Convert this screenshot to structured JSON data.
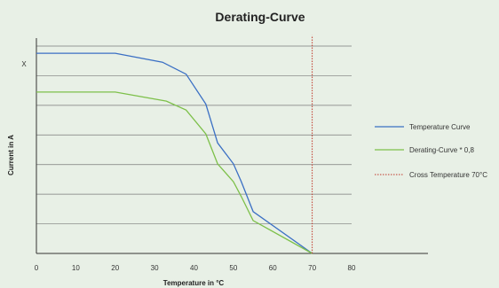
{
  "chart_data": {
    "type": "line",
    "title": "Derating-Curve",
    "xlabel": "Temperature in °C",
    "ylabel": "Current in A",
    "xlim": [
      0,
      80
    ],
    "x_ticks": [
      "0",
      "10",
      "20",
      "30",
      "40",
      "50",
      "60",
      "70",
      "80"
    ],
    "ylim": [
      0,
      7
    ],
    "y_tick_labels": [
      {
        "y": 6.35,
        "label": "X"
      }
    ],
    "grid": "horizontal",
    "legend_position": "right",
    "series": [
      {
        "name": "Temperature Curve",
        "color": "#3a6fc4",
        "style": "solid",
        "x": [
          0,
          20,
          32,
          38,
          43,
          46,
          50,
          52,
          55,
          70
        ],
        "y": [
          6.7,
          6.7,
          6.4,
          6.0,
          5.0,
          3.7,
          3.0,
          2.4,
          1.4,
          0
        ]
      },
      {
        "name": "Derating-Curve * 0,8",
        "color": "#7dc04a",
        "style": "solid",
        "x": [
          0,
          20,
          33,
          38,
          43,
          46,
          50,
          52,
          55,
          70
        ],
        "y": [
          5.4,
          5.4,
          5.1,
          4.8,
          4.0,
          3.0,
          2.4,
          1.9,
          1.1,
          0
        ]
      },
      {
        "name": "Cross Temperature 70°C",
        "color": "#c0392b",
        "style": "dotted",
        "x": [
          70,
          70
        ],
        "y": [
          0,
          7.3
        ]
      }
    ]
  }
}
